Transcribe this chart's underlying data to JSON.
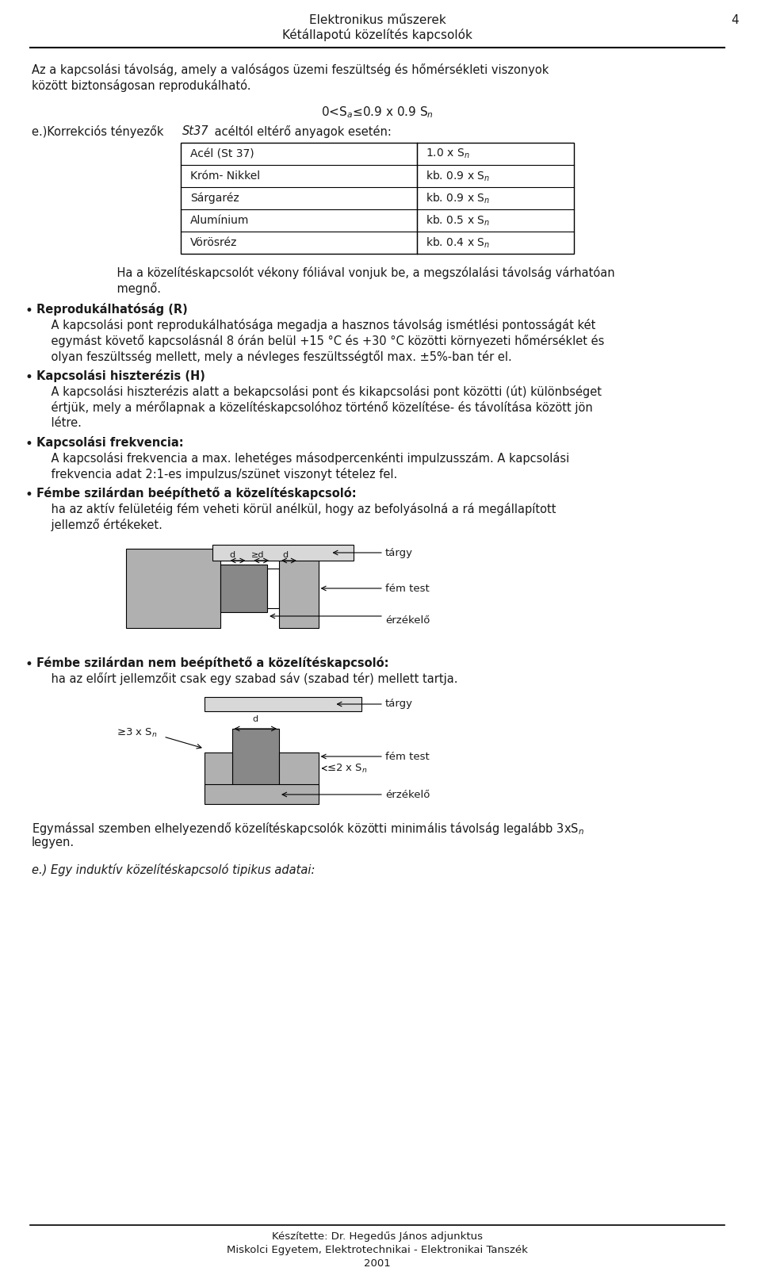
{
  "header_line1": "Elektronikus műszerek",
  "header_line2": "Kétállapotú közelítés kapcsolók",
  "page_number": "4",
  "body_text1": "Az a kapcsolási távolsság, amely a valóságos üzemi feszültsség és hőmérsékleti viszonyok\nközött biztonságosan reprodukálható.",
  "formula": "0<S$_a$≤0.9 x 0.9 S$_n$",
  "label_e": "e.)Korrekciós tényezők  St37 acéltól eltérő anyagok esetén:",
  "table_rows": [
    [
      "Acél (St 37)",
      "1.0 x S$_n$"
    ],
    [
      "Króm- Nikkel",
      "kb. 0.9 x S$_n$"
    ],
    [
      "Sárgaréz",
      "kb. 0.9 x S$_n$"
    ],
    [
      "Alumínium",
      "kb. 0.5 x S$_n$"
    ],
    [
      "Vörösréz",
      "kb. 0.4 x S$_n$"
    ]
  ],
  "foil_text": "    Ha a közelítéskapcsolót vékony fóliával vonjuk be, a megszólalási távolság várhatóan\n    megnő.",
  "bullet1_title": "Reprodukálhatóság (R)",
  "bullet1_text": "    A kapcsolási pont reprodukálhatósága megadja a hasznos távolság ismétlési pontosságát két\n    egymást követő kapcsolásnál 8 órán belül +15 °C és +30 °C közötti környezeti hőmérséklet és\n    olyan feszültsség mellett, mely a névleges feszültsségtől max. ±5%-ban tér el.",
  "bullet2_title": "Kapcsolási hiszterézis (H)",
  "bullet2_text": "    A kapcsolási hiszterézis alatt a bekapcsolási pont és kikapcsolási pont közötti (út) különbséget\n    értjük, mely a mérőlapnak a közelítéskapcsolóhoz történő közelítése- és távolítása között jön\n    létre.",
  "bullet3_title": "Kapcsolási frekvencia:",
  "bullet3_text": "    A kapcsolási frekvencia a max. lehetéges másodpercenkénti impulzusszám. A kapcsolási\n    frekvencia adat 2:1-es impulzus/szünet viszonyt tételez fel.",
  "bullet4_title": "Fémbe szilárdan beépíthető a közelítéskapcsoló:",
  "bullet4_text": "    ha az aktív felületéig fém veheti körül anélkül, hogy az befolyásolná a rá megállapított\n    jellemző értékeket.",
  "diagram1_label_targy": "tárgy",
  "diagram1_label_femtest": "fém test",
  "diagram1_label_erzekelo": "érzékelő",
  "diagram1_label_d": "d",
  "diagram2_label_targy": "tárgy",
  "diagram2_label_femtest": "fém test",
  "diagram2_label_erzekelo": "érzékelő",
  "diagram2_label_3xSn": "≥3 x S$_n$",
  "diagram2_label_d": "d",
  "diagram2_label_2xSn": "≤2 x S$_n$",
  "last_text1": "Egymással szemben elhelyezendő közelítéskapcsolók közötti minimális távolság legalább 3xS$_n$\nlegyen.",
  "last_text2": "e.) Egy induktív közelítéskapcsoló tipikus adatai:",
  "footer1": "Készítette: Dr. Hegedűs János adjunktus",
  "footer2": "Miskolci Egyetem, Elektrotechnikai - Elektronikai Tanszék",
  "footer3": "2001",
  "bg_color": "#ffffff",
  "text_color": "#1a1a1a",
  "table_border_color": "#000000",
  "font_size_header": 11,
  "font_size_body": 10.5,
  "font_size_small": 9.5
}
